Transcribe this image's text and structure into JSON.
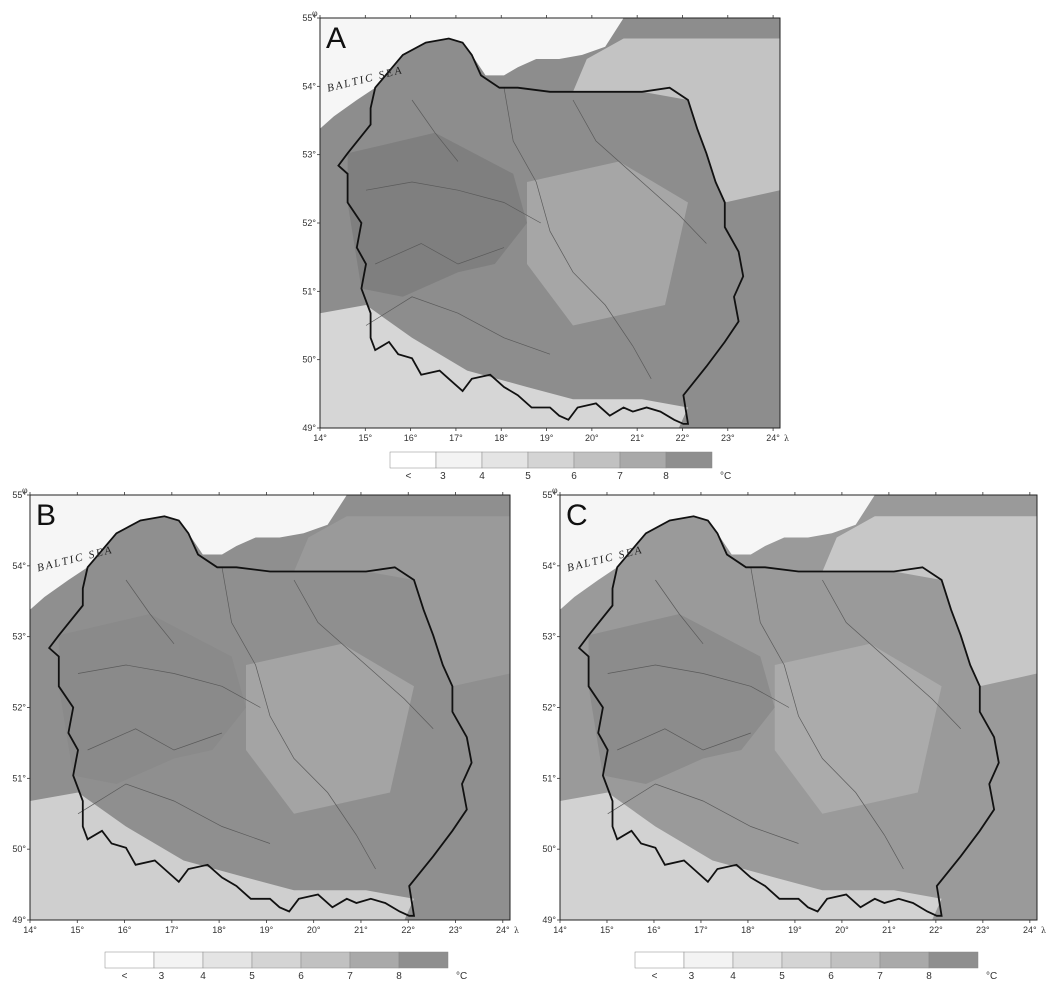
{
  "maps": [
    {
      "panel": "A",
      "sea_label": "BALTIC SEA",
      "lat_ticks": [
        "55°",
        "54°",
        "53°",
        "52°",
        "51°",
        "50°",
        "49°"
      ],
      "lon_ticks": [
        "14°",
        "15°",
        "16°",
        "17°",
        "18°",
        "19°",
        "20°",
        "21°",
        "22°",
        "23°",
        "24°"
      ],
      "lat_symbol": "φ",
      "lon_symbol": "λ",
      "palette": {
        "bg": "#8d8d8d",
        "west": "#7f7f7f",
        "east": "#c3c3c3",
        "center": "#a6a6a6",
        "mountain": "#d6d6d6"
      }
    },
    {
      "panel": "B",
      "sea_label": "BALTIC SEA",
      "lat_ticks": [
        "55°",
        "54°",
        "53°",
        "52°",
        "51°",
        "50°",
        "49°"
      ],
      "lon_ticks": [
        "14°",
        "15°",
        "16°",
        "17°",
        "18°",
        "19°",
        "20°",
        "21°",
        "22°",
        "23°",
        "24°"
      ],
      "lat_symbol": "φ",
      "lon_symbol": "λ",
      "palette": {
        "bg": "#8f8f8f",
        "west": "#8a8a8a",
        "east": "#9a9a9a",
        "center": "#a4a4a4",
        "mountain": "#cfcfcf"
      }
    },
    {
      "panel": "C",
      "sea_label": "BALTIC SEA",
      "lat_ticks": [
        "55°",
        "54°",
        "53°",
        "52°",
        "51°",
        "50°",
        "49°"
      ],
      "lon_ticks": [
        "14°",
        "15°",
        "16°",
        "17°",
        "18°",
        "19°",
        "20°",
        "21°",
        "22°",
        "23°",
        "24°"
      ],
      "lat_symbol": "φ",
      "lon_symbol": "λ",
      "palette": {
        "bg": "#9a9a9a",
        "west": "#8c8c8c",
        "east": "#c7c7c7",
        "center": "#ababab",
        "mountain": "#d2d2d2"
      }
    }
  ],
  "legend": {
    "labels": [
      "<",
      "3",
      "4",
      "5",
      "6",
      "7",
      "8"
    ],
    "unit": "°C",
    "colors": [
      "#ffffff",
      "#f3f3f3",
      "#e4e4e4",
      "#d4d4d4",
      "#c1c1c1",
      "#a9a9a9",
      "#8e8e8e"
    ]
  }
}
